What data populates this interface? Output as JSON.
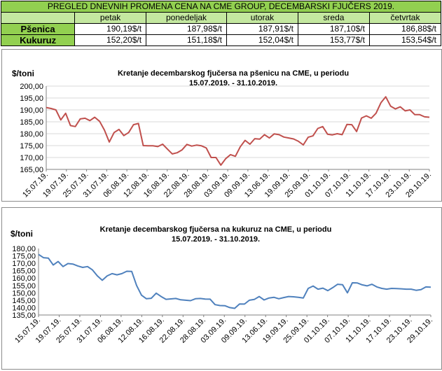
{
  "table": {
    "title": "PREGLED DNEVNIH PROMENA CENA NA CME GROUP, DECEMBARSKI  FJUČERS 2019.",
    "headers": [
      "petak",
      "ponedeljak",
      "utorak",
      "sreda",
      "četvrtak"
    ],
    "rows": [
      {
        "label": "Pšenica",
        "values": [
          "190,19$/t",
          "187,98$/t",
          "187,91$/t",
          "187,10$/t",
          "186,88$/t"
        ]
      },
      {
        "label": "Kukuruz",
        "values": [
          "152,20$/t",
          "151,18$/t",
          "152,04$/t",
          "153,77$/t",
          "153,54$/t"
        ]
      }
    ]
  },
  "chart_data": [
    {
      "type": "line",
      "title": "Kretanje decembarskog fjučersa na  pšenicu na CME, u periodu",
      "subtitle": "15.07.2019. - 31.10.2019.",
      "ylabel": "$/toni",
      "ylim": [
        165,
        200
      ],
      "yticks": [
        "165,00",
        "170,00",
        "175,00",
        "180,00",
        "185,00",
        "190,00",
        "195,00",
        "200,00"
      ],
      "grid": true,
      "color": "#c0504d",
      "xticks": [
        "15.07.19.",
        "19.07.19.",
        "25.07.19.",
        "31.07.19.",
        "06.08.19.",
        "12.08.19.",
        "16.08.19.",
        "22.08.19.",
        "28.08.19.",
        "03.09.19.",
        "09.09.19.",
        "13.06.19.",
        "19.09.19.",
        "25.09.19.",
        "01.10.19.",
        "07.10.19.",
        "11.10.19.",
        "17.10.19.",
        "23.10.19.",
        "29.10.19."
      ],
      "values": [
        191.0,
        190.6,
        190.0,
        185.8,
        188.6,
        183.4,
        183.0,
        186.2,
        186.5,
        185.5,
        186.9,
        185.2,
        181.5,
        176.5,
        180.5,
        181.8,
        179.2,
        180.5,
        183.8,
        184.3,
        175.0,
        174.9,
        174.9,
        174.6,
        175.6,
        173.5,
        171.5,
        172.0,
        173.2,
        175.5,
        174.8,
        175.2,
        174.9,
        174.0,
        170.0,
        170.0,
        166.8,
        169.5,
        171.2,
        170.5,
        174.5,
        177.2,
        175.6,
        177.9,
        177.7,
        179.6,
        178.2,
        179.9,
        179.6,
        178.6,
        178.2,
        177.8,
        176.8,
        175.3,
        178.5,
        179.1,
        182.2,
        183.0,
        179.8,
        179.5,
        180.0,
        179.6,
        183.9,
        183.8,
        180.9,
        186.6,
        187.5,
        186.5,
        188.6,
        193.0,
        195.5,
        191.6,
        190.4,
        191.3,
        189.6,
        190.0,
        188.0,
        188.0,
        187.1,
        186.9
      ]
    },
    {
      "type": "line",
      "title": "Kretanje decembarskog fjučersa na  kukuruz na CME, u periodu",
      "subtitle": "15.07.2019. - 31.10.2019.",
      "ylabel": "$/toni",
      "ylim": [
        135,
        180
      ],
      "yticks": [
        "135,00",
        "140,00",
        "145,00",
        "150,00",
        "155,00",
        "160,00",
        "165,00",
        "170,00",
        "175,00",
        "180,00"
      ],
      "grid": false,
      "color": "#4f81bd",
      "xticks": [
        "15.07.19.",
        "19.07.19.",
        "25.07.19.",
        "31.07.19.",
        "06.08.19.",
        "12.08.19.",
        "16.08.19.",
        "22.08.19.",
        "28.08.19.",
        "03.09.19.",
        "09.09.19.",
        "13.06.19.",
        "19.09.19.",
        "25.09.19.",
        "01.10.19.",
        "07.10.19.",
        "11.10.19.",
        "17.10.19.",
        "23.10.19.",
        "29.10.19."
      ],
      "values": [
        176.0,
        173.8,
        173.5,
        168.8,
        171.2,
        167.8,
        169.8,
        169.5,
        168.2,
        167.2,
        167.8,
        165.5,
        161.5,
        158.5,
        161.5,
        163.0,
        162.2,
        163.0,
        164.6,
        164.5,
        155.0,
        148.4,
        146.0,
        146.3,
        149.8,
        147.5,
        145.6,
        145.9,
        146.2,
        145.3,
        145.0,
        144.7,
        146.0,
        146.2,
        145.8,
        145.7,
        142.0,
        141.4,
        141.3,
        140.0,
        139.5,
        142.5,
        142.4,
        145.0,
        145.5,
        147.5,
        145.2,
        146.5,
        147.0,
        146.0,
        146.8,
        147.5,
        147.3,
        147.0,
        146.5,
        153.0,
        154.6,
        152.5,
        153.2,
        151.5,
        153.5,
        155.8,
        155.5,
        150.0,
        156.8,
        156.7,
        155.4,
        154.7,
        155.8,
        154.0,
        153.0,
        152.5,
        153.0,
        152.9,
        152.7,
        152.5,
        152.5,
        151.7,
        152.2,
        154.0,
        153.8
      ]
    }
  ]
}
